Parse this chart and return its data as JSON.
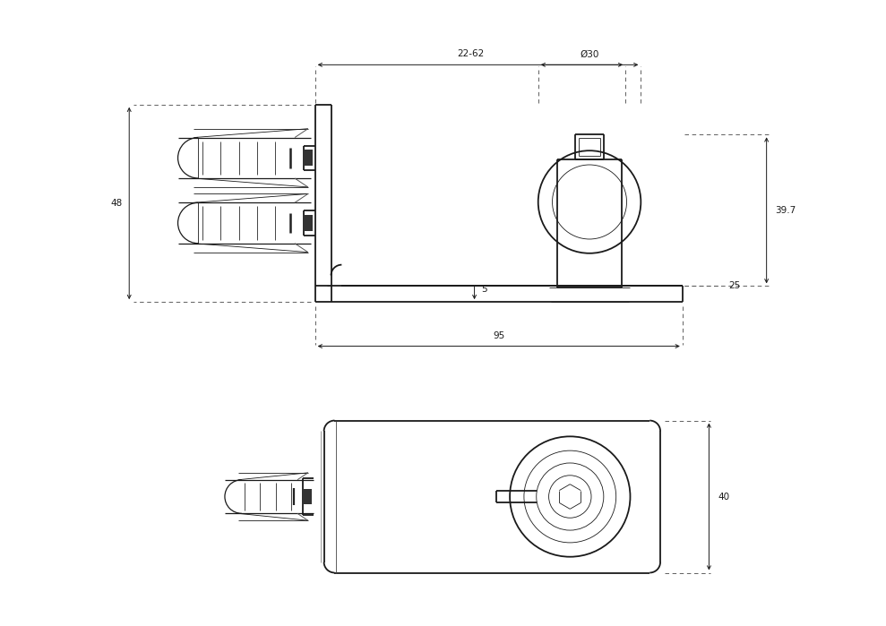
{
  "bg_color": "#ffffff",
  "line_color": "#1a1a1a",
  "dim_color": "#1a1a1a",
  "fig_width": 9.89,
  "fig_height": 6.99,
  "top_view": {
    "dim_22_62": "22-62",
    "dim_95": "95",
    "dim_48": "48",
    "dim_25": "25",
    "dim_397": "39.7",
    "dim_5": "5",
    "dim_30": "Ø30"
  },
  "bottom_view": {
    "dim_40": "40"
  }
}
